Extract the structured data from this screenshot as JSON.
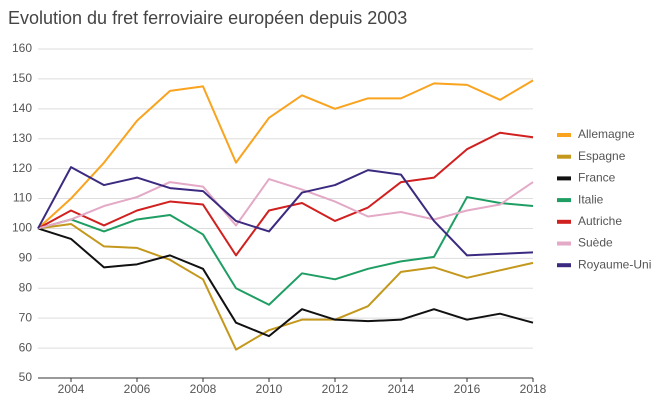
{
  "chart_data": {
    "type": "line",
    "title": "Evolution du fret ferroviaire européen depuis 2003",
    "x": [
      2003,
      2004,
      2005,
      2006,
      2007,
      2008,
      2009,
      2010,
      2011,
      2012,
      2013,
      2014,
      2015,
      2016,
      2017,
      2018
    ],
    "xlim": [
      2003,
      2018
    ],
    "xticks": [
      2004,
      2006,
      2008,
      2010,
      2012,
      2014,
      2016,
      2018
    ],
    "ylim": [
      50,
      160
    ],
    "yticks": [
      50,
      60,
      70,
      80,
      90,
      100,
      110,
      120,
      130,
      140,
      150,
      160
    ],
    "grid": true,
    "legend": "right",
    "series": [
      {
        "name": "Allemagne",
        "color": "#f9a31f",
        "values": [
          100,
          110,
          122,
          136,
          146,
          147.5,
          122,
          137,
          144.5,
          140,
          143.5,
          143.5,
          148.5,
          148,
          143,
          149.5
        ]
      },
      {
        "name": "Espagne",
        "color": "#c4981c",
        "values": [
          100,
          101.5,
          94,
          93.5,
          89.5,
          83,
          59.5,
          66,
          69.5,
          69.5,
          74,
          85.5,
          87,
          83.5,
          86,
          88.5
        ]
      },
      {
        "name": "France",
        "color": "#111111",
        "values": [
          100,
          96.5,
          87,
          88,
          91,
          86.5,
          68.5,
          64,
          73,
          69.5,
          69,
          69.5,
          73,
          69.5,
          71.5,
          68.5
        ]
      },
      {
        "name": "Italie",
        "color": "#1f9e63",
        "values": [
          100,
          103,
          99,
          103,
          104.5,
          98,
          80,
          74.5,
          85,
          83,
          86.5,
          89,
          90.5,
          110.5,
          108.5,
          107.5
        ]
      },
      {
        "name": "Autriche",
        "color": "#d0201f",
        "values": [
          100,
          106,
          101,
          106,
          109,
          108,
          91,
          106,
          108.5,
          102.5,
          107,
          115.5,
          117,
          126.5,
          132,
          130.5
        ]
      },
      {
        "name": "Suède",
        "color": "#e3a9c6",
        "values": [
          100,
          103,
          107.5,
          110.5,
          115.5,
          114,
          101,
          116.5,
          113,
          109,
          104,
          105.5,
          103,
          106,
          108,
          115.5
        ]
      },
      {
        "name": "Royaume-Uni",
        "color": "#3b2a80",
        "values": [
          100,
          120.5,
          114.5,
          117,
          113.5,
          112.5,
          102.5,
          99,
          112,
          114.5,
          119.5,
          118,
          102.5,
          91,
          91.5,
          92
        ]
      }
    ]
  }
}
